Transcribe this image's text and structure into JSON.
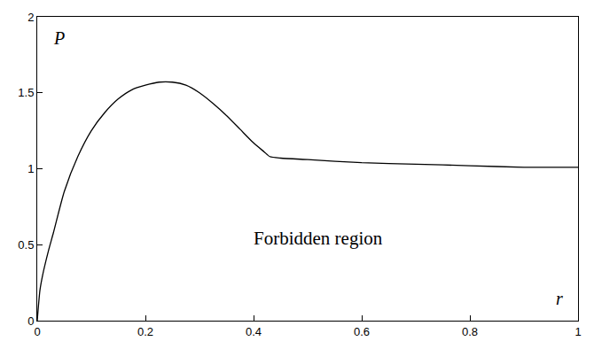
{
  "chart_data": {
    "type": "line",
    "x_label": "r",
    "y_label": "P",
    "annotations": [
      "Forbidden region"
    ],
    "x": [
      0,
      0.005,
      0.01,
      0.02,
      0.03,
      0.05,
      0.075,
      0.1,
      0.125,
      0.15,
      0.175,
      0.2,
      0.225,
      0.25,
      0.275,
      0.3,
      0.325,
      0.35,
      0.375,
      0.4,
      0.42,
      0.43,
      0.45,
      0.5,
      0.6,
      0.7,
      0.8,
      0.9,
      1.0
    ],
    "values": [
      0,
      0.2,
      0.3,
      0.45,
      0.58,
      0.85,
      1.08,
      1.25,
      1.37,
      1.46,
      1.52,
      1.55,
      1.57,
      1.57,
      1.55,
      1.5,
      1.43,
      1.35,
      1.26,
      1.17,
      1.11,
      1.08,
      1.07,
      1.06,
      1.04,
      1.03,
      1.02,
      1.01,
      1.01
    ],
    "color": "#000000",
    "xlim": [
      0,
      1
    ],
    "ylim": [
      0,
      2
    ],
    "xticks": [
      0,
      0.2,
      0.4,
      0.6,
      0.8,
      1
    ],
    "yticks": [
      0,
      0.5,
      1,
      1.5,
      2
    ],
    "grid": false
  }
}
